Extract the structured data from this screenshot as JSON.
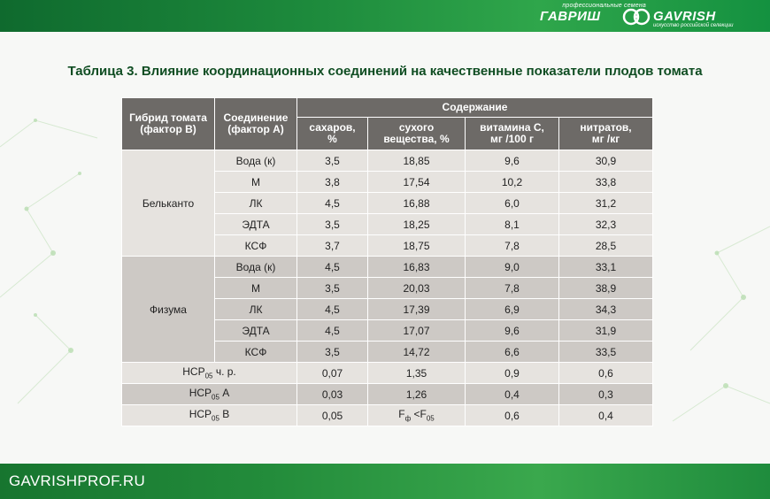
{
  "header": {
    "tagline": "профессиональные семена",
    "brand_ru": "ГАВРИШ",
    "brand_en": "GAVRISH",
    "brand_sub": "искусство российской селекции"
  },
  "title": "Таблица 3. Влияние координационных соединений на качественные показатели плодов томата",
  "table": {
    "col_hybrid": [
      "Гибрид томата",
      "(фактор В)"
    ],
    "col_compound": [
      "Соединение",
      "(фактор А)"
    ],
    "group_header": "Содержание",
    "sub_headers": [
      [
        "сахаров,",
        "%"
      ],
      [
        "сухого",
        "вещества, %"
      ],
      [
        "витамина С,",
        "мг /100 г"
      ],
      [
        "нитратов,",
        "мг /кг"
      ]
    ],
    "groups": [
      {
        "hybrid": "Бельканто",
        "rows": [
          {
            "compound": "Вода (к)",
            "values": [
              "3,5",
              "18,85",
              "9,6",
              "30,9"
            ]
          },
          {
            "compound": "М",
            "values": [
              "3,8",
              "17,54",
              "10,2",
              "33,8"
            ]
          },
          {
            "compound": "ЛК",
            "values": [
              "4,5",
              "16,88",
              "6,0",
              "31,2"
            ]
          },
          {
            "compound": "ЭДТА",
            "values": [
              "3,5",
              "18,25",
              "8,1",
              "32,3"
            ]
          },
          {
            "compound": "КСФ",
            "values": [
              "3,7",
              "18,75",
              "7,8",
              "28,5"
            ]
          }
        ]
      },
      {
        "hybrid": "Физума",
        "rows": [
          {
            "compound": "Вода (к)",
            "values": [
              "4,5",
              "16,83",
              "9,0",
              "33,1"
            ]
          },
          {
            "compound": "М",
            "values": [
              "3,5",
              "20,03",
              "7,8",
              "38,9"
            ]
          },
          {
            "compound": "ЛК",
            "values": [
              "4,5",
              "17,39",
              "6,9",
              "34,3"
            ]
          },
          {
            "compound": "ЭДТА",
            "values": [
              "4,5",
              "17,07",
              "9,6",
              "31,9"
            ]
          },
          {
            "compound": "КСФ",
            "values": [
              "3,5",
              "14,72",
              "6,6",
              "33,5"
            ]
          }
        ]
      }
    ],
    "nsr": [
      {
        "label": "НСР",
        "sub": "05",
        "suffix": " ч. р.",
        "values": [
          "0,07",
          "1,35",
          "0,9",
          "0,6"
        ]
      },
      {
        "label": "НСР",
        "sub": "05",
        "suffix": " А",
        "values": [
          "0,03",
          "1,26",
          "0,4",
          "0,3"
        ]
      },
      {
        "label": "НСР",
        "sub": "05",
        "suffix": " В",
        "values": [
          "0,05",
          "",
          "0,6",
          "0,4"
        ]
      }
    ],
    "ff": {
      "f": "F",
      "fsub": "ф",
      "lt": " <F",
      "sub05": "05"
    }
  },
  "footer": {
    "site": "GAVRISHPROF.RU"
  },
  "colors": {
    "header_cell": "#6d6a67",
    "light_cell": "#e6e3df",
    "dark_cell": "#cdc9c5",
    "brand_green": "#1d8a3c",
    "title_green": "#0f4d22"
  }
}
